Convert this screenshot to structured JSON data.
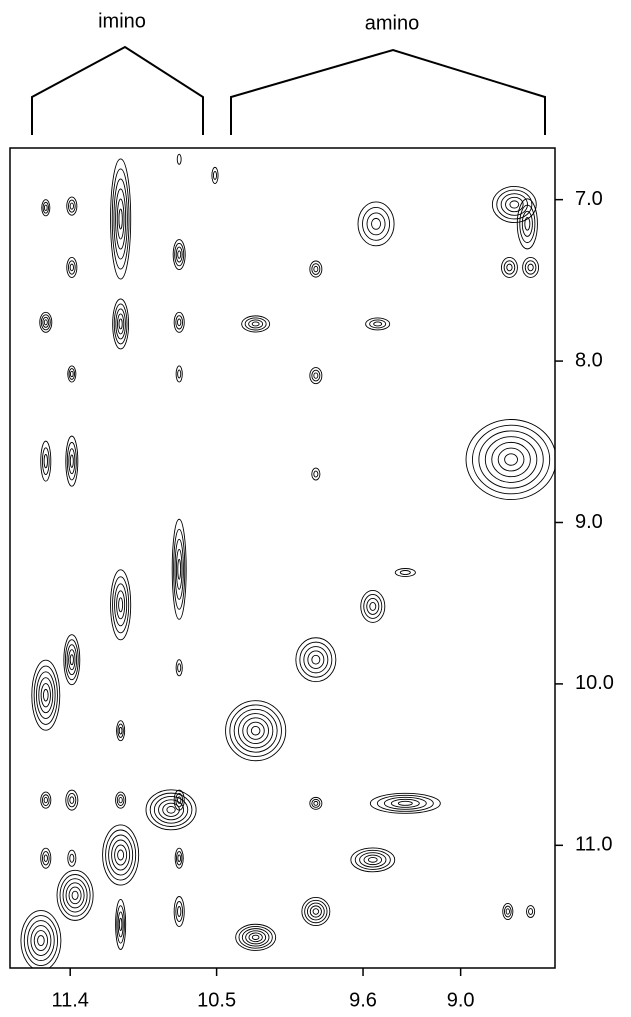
{
  "chart_data": {
    "type": "contour",
    "annotations": [
      "imino",
      "amino"
    ],
    "xlim": [
      11.77,
      8.42
    ],
    "ylim": [
      6.68,
      11.76
    ],
    "xticks": [
      11.4,
      10.5,
      9.6,
      {
        "value": 9,
        "label": "9.0"
      }
    ],
    "yticks": [
      {
        "value": 7,
        "label": "7.0"
      },
      {
        "value": 8,
        "label": "8.0"
      },
      {
        "value": 9,
        "label": "9.0"
      },
      {
        "value": 10,
        "label": "10.0"
      },
      {
        "value": 11,
        "label": "11.0"
      }
    ],
    "color": "#000000",
    "x": [
      11.55,
      11.39,
      11.09,
      11.09,
      10.73,
      11.39,
      11.55,
      10.73,
      11.39,
      10.73,
      11.55,
      11.39,
      11.09,
      10.73,
      11.39,
      11.55,
      11.09,
      10.73,
      11.55,
      11.39,
      11.09,
      10.73,
      10.78,
      11.09,
      11.37,
      11.58,
      11.55,
      11.39,
      10.73,
      10.73,
      11.09,
      10.26,
      9.89,
      9.89,
      9.52,
      9.51,
      8.67,
      8.59,
      8.7,
      8.57,
      8.69,
      9.89,
      9.34,
      9.54,
      9.89,
      10.26,
      9.89,
      9.34,
      9.54,
      9.89,
      10.26,
      8.71,
      8.57,
      10.51,
      10.73
    ],
    "y": [
      7.05,
      7.04,
      7.12,
      7.77,
      7.34,
      7.42,
      7.76,
      7.76,
      8.08,
      8.08,
      8.62,
      8.62,
      9.51,
      9.29,
      9.85,
      10.07,
      10.29,
      9.9,
      10.72,
      10.72,
      10.72,
      10.72,
      10.78,
      11.06,
      11.31,
      11.59,
      11.08,
      11.08,
      11.08,
      11.41,
      11.49,
      7.77,
      7.43,
      8.09,
      7.15,
      7.77,
      7.03,
      7.15,
      7.42,
      7.42,
      8.61,
      8.7,
      9.31,
      9.52,
      9.85,
      10.29,
      10.74,
      10.74,
      11.09,
      11.41,
      11.57,
      11.41,
      11.41,
      6.85,
      6.75
    ],
    "x_width": [
      0.025,
      0.031,
      0.062,
      0.049,
      0.037,
      0.031,
      0.037,
      0.031,
      0.025,
      0.019,
      0.031,
      0.037,
      0.062,
      0.043,
      0.049,
      0.086,
      0.025,
      0.019,
      0.031,
      0.037,
      0.031,
      0.031,
      0.154,
      0.111,
      0.111,
      0.123,
      0.031,
      0.025,
      0.025,
      0.031,
      0.031,
      0.086,
      0.037,
      0.037,
      0.111,
      0.074,
      0.135,
      0.062,
      0.049,
      0.049,
      0.277,
      0.025,
      0.062,
      0.074,
      0.123,
      0.185,
      0.037,
      0.215,
      0.135,
      0.086,
      0.123,
      0.031,
      0.025,
      0.019,
      0.012
    ],
    "y_width": [
      0.05,
      0.056,
      0.372,
      0.155,
      0.093,
      0.062,
      0.062,
      0.062,
      0.05,
      0.05,
      0.124,
      0.155,
      0.217,
      0.31,
      0.155,
      0.217,
      0.062,
      0.05,
      0.05,
      0.062,
      0.05,
      0.062,
      0.124,
      0.186,
      0.155,
      0.186,
      0.062,
      0.05,
      0.062,
      0.093,
      0.155,
      0.05,
      0.05,
      0.05,
      0.136,
      0.037,
      0.112,
      0.155,
      0.062,
      0.062,
      0.248,
      0.037,
      0.025,
      0.099,
      0.136,
      0.186,
      0.037,
      0.062,
      0.074,
      0.087,
      0.081,
      0.05,
      0.037,
      0.05,
      0.031
    ],
    "levels": [
      3,
      3,
      6,
      5,
      4,
      3,
      4,
      3,
      3,
      2,
      3,
      4,
      5,
      5,
      5,
      6,
      3,
      2,
      3,
      3,
      3,
      3,
      6,
      6,
      6,
      6,
      3,
      2,
      3,
      3,
      4,
      4,
      3,
      3,
      4,
      3,
      5,
      4,
      3,
      3,
      7,
      2,
      2,
      4,
      5,
      7,
      3,
      5,
      5,
      5,
      6,
      3,
      2,
      2,
      1
    ]
  }
}
